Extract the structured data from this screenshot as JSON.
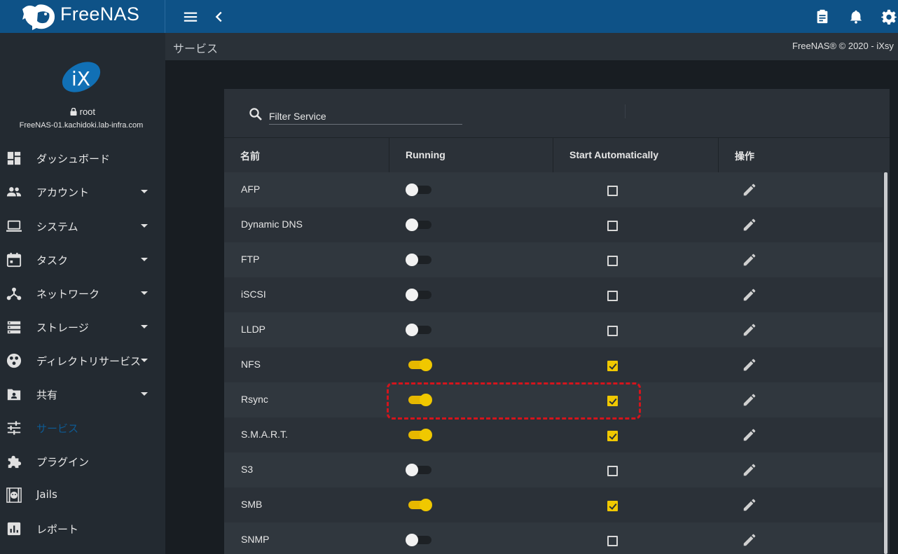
{
  "app": {
    "brand": "FreeNAS",
    "page_title": "サービス",
    "copyright": "FreeNAS® © 2020 - iXsy"
  },
  "user": {
    "name": "root",
    "hostname": "FreeNAS-01.kachidoki.lab-infra.com"
  },
  "sidebar": {
    "items": [
      {
        "label": "ダッシュボード",
        "icon": "dashboard-icon",
        "has_caret": false
      },
      {
        "label": "アカウント",
        "icon": "people-icon",
        "has_caret": true
      },
      {
        "label": "システム",
        "icon": "laptop-icon",
        "has_caret": true
      },
      {
        "label": "タスク",
        "icon": "calendar-icon",
        "has_caret": true
      },
      {
        "label": "ネットワーク",
        "icon": "network-icon",
        "has_caret": true
      },
      {
        "label": "ストレージ",
        "icon": "storage-icon",
        "has_caret": true
      },
      {
        "label": "ディレクトリサービス",
        "icon": "directory-icon",
        "has_caret": true
      },
      {
        "label": "共有",
        "icon": "shared-folder-icon",
        "has_caret": true
      },
      {
        "label": "サービス",
        "icon": "tune-icon",
        "has_caret": false,
        "active": true
      },
      {
        "label": "プラグイン",
        "icon": "puzzle-icon",
        "has_caret": false
      },
      {
        "label": "Jails",
        "icon": "jail-icon",
        "has_caret": false
      },
      {
        "label": "レポート",
        "icon": "report-icon",
        "has_caret": false
      }
    ]
  },
  "filter": {
    "placeholder": "Filter Service"
  },
  "table": {
    "columns": [
      "名前",
      "Running",
      "Start Automatically",
      "操作"
    ],
    "rows": [
      {
        "name": "AFP",
        "running": false,
        "auto": false
      },
      {
        "name": "Dynamic DNS",
        "running": false,
        "auto": false
      },
      {
        "name": "FTP",
        "running": false,
        "auto": false
      },
      {
        "name": "iSCSI",
        "running": false,
        "auto": false
      },
      {
        "name": "LLDP",
        "running": false,
        "auto": false
      },
      {
        "name": "NFS",
        "running": true,
        "auto": true
      },
      {
        "name": "Rsync",
        "running": true,
        "auto": true
      },
      {
        "name": "S.M.A.R.T.",
        "running": true,
        "auto": true
      },
      {
        "name": "S3",
        "running": false,
        "auto": false
      },
      {
        "name": "SMB",
        "running": true,
        "auto": true
      },
      {
        "name": "SNMP",
        "running": false,
        "auto": false
      }
    ]
  },
  "colors": {
    "topbar": "#0e5287",
    "sidebar": "#232a31",
    "accent": "#f0c800",
    "highlight": "#d4141c"
  }
}
